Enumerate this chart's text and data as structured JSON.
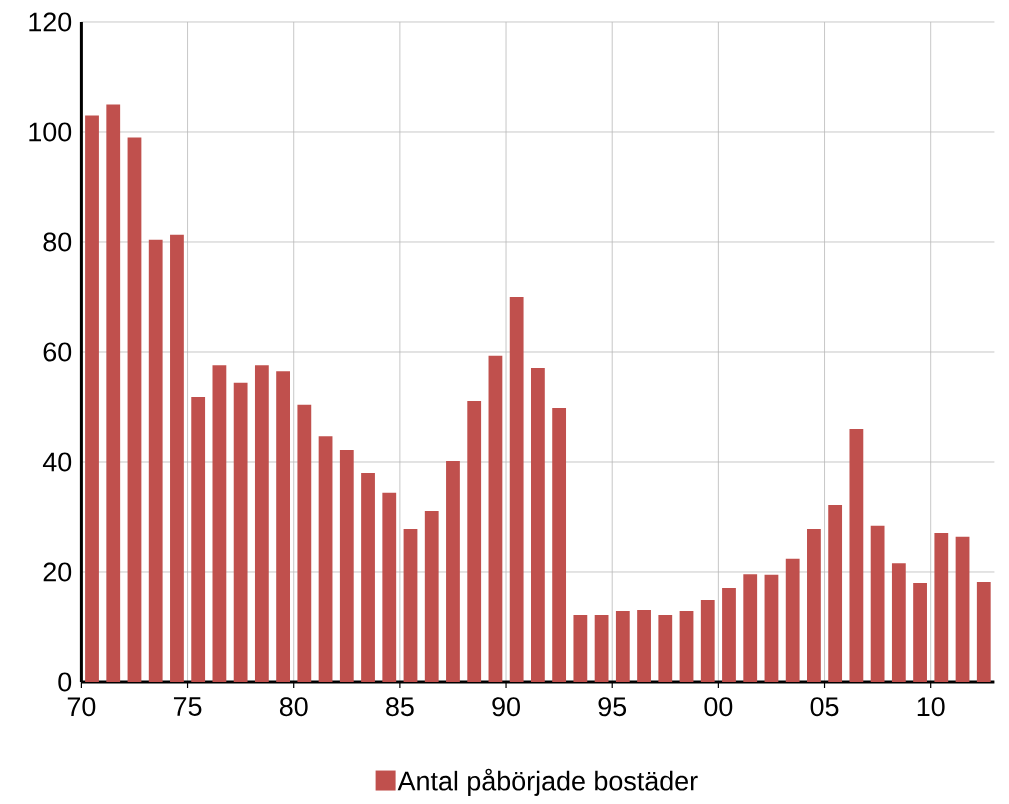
{
  "chart_data": {
    "type": "bar",
    "categories": [
      "70",
      null,
      null,
      null,
      null,
      "75",
      null,
      null,
      null,
      null,
      "80",
      null,
      null,
      null,
      null,
      "85",
      null,
      null,
      null,
      null,
      "90",
      null,
      null,
      null,
      null,
      "95",
      null,
      null,
      null,
      null,
      "00",
      null,
      null,
      null,
      null,
      "05",
      null,
      null,
      null,
      null,
      "10",
      null,
      null
    ],
    "series": [
      {
        "name": "Antal påbörjade bostäder",
        "color": "#c0504d",
        "values": [
          103,
          105,
          99,
          80.4,
          81.3,
          51.8,
          57.6,
          54.4,
          57.6,
          56.5,
          50.4,
          44.7,
          42.2,
          38,
          34.4,
          27.8,
          31.1,
          40.2,
          51.1,
          59.3,
          70,
          57.1,
          49.8,
          12.2,
          12.2,
          12.9,
          13.1,
          12.2,
          12.9,
          14.9,
          17.1,
          19.6,
          19.5,
          22.4,
          27.8,
          32.2,
          46,
          28.4,
          21.6,
          18,
          27.1,
          26.4,
          18.2
        ]
      }
    ],
    "ylim": [
      0,
      120
    ],
    "yticks": [
      0,
      20,
      40,
      60,
      80,
      100,
      120
    ],
    "grid": true,
    "legend": "bottom"
  }
}
